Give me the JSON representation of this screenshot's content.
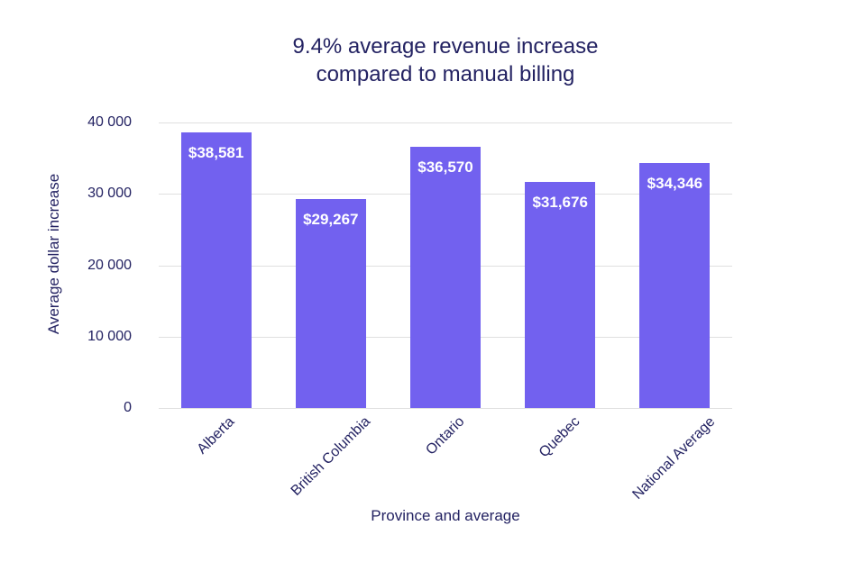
{
  "chart_data": {
    "type": "bar",
    "title_lines": [
      "9.4% average revenue increase",
      "compared to manual billing"
    ],
    "xlabel": "Province and average",
    "ylabel": "Average dollar increase",
    "categories": [
      "Alberta",
      "British Columbia",
      "Ontario",
      "Quebec",
      "National Average"
    ],
    "values": [
      38581,
      29267,
      36570,
      31676,
      34346
    ],
    "bar_labels": [
      "$38,581",
      "$29,267",
      "$36,570",
      "$31,676",
      "$34,346"
    ],
    "ylim": [
      0,
      40000
    ],
    "yticks": [
      {
        "value": 40000,
        "label": "40 000"
      },
      {
        "value": 30000,
        "label": "30 000"
      },
      {
        "value": 20000,
        "label": "20 000"
      },
      {
        "value": 10000,
        "label": "10 000"
      },
      {
        "value": 0,
        "label": "0"
      }
    ],
    "grid": true,
    "legend": "none",
    "colors": {
      "bar": "#7261ef",
      "text": "#232262",
      "bar_label": "#ffffff",
      "gridline": "#e0e0e0",
      "background": "#ffffff"
    }
  }
}
